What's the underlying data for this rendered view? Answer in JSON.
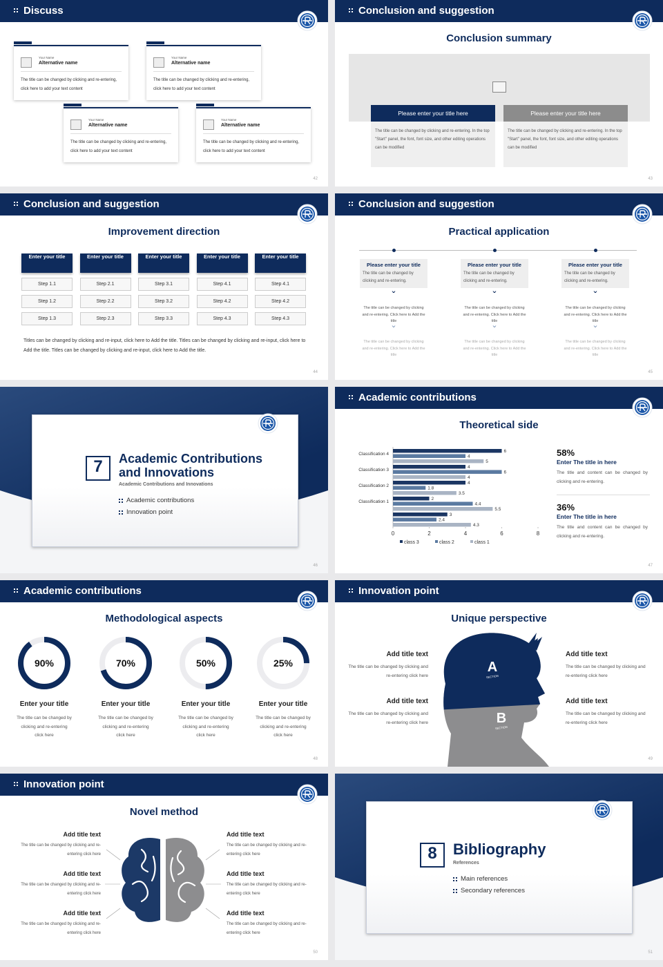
{
  "slides": [
    {
      "header": "Discuss",
      "page": "42",
      "cards": [
        {
          "label": "Your Name",
          "name": "Alternative name",
          "text": "The title can be changed by clicking and re-entering, click here to add your text content"
        },
        {
          "label": "Your Name",
          "name": "Alternative name",
          "text": "The title can be changed by clicking and re-entering, click here to add your text content"
        },
        {
          "label": "Your Name",
          "name": "Alternative name",
          "text": "The title can be changed by clicking and re-entering, click here to add your text content"
        },
        {
          "label": "Your Name",
          "name": "Alternative name",
          "text": "The title can be changed by clicking and re-entering, click here to add your text content"
        }
      ]
    },
    {
      "header": "Conclusion and suggestion",
      "title": "Conclusion summary",
      "page": "43",
      "boxes": [
        {
          "title": "Please enter your title here",
          "text": "The title can be changed by clicking and re-entering. In the top \"Start\" panel, the font, font size, and other editing operations can be modified"
        },
        {
          "title": "Please enter your title here",
          "text": "The title can be changed by clicking and re-entering. In the top \"Start\" panel, the font, font size, and other editing operations can be modified"
        }
      ]
    },
    {
      "header": "Conclusion and suggestion",
      "title": "Improvement direction",
      "page": "44",
      "columns": [
        {
          "title": "Enter your title",
          "steps": [
            "Step 1.1",
            "Step 1.2",
            "Step 1.3"
          ]
        },
        {
          "title": "Enter your title",
          "steps": [
            "Step 2.1",
            "Step 2.2",
            "Step 2.3"
          ]
        },
        {
          "title": "Enter your title",
          "steps": [
            "Step 3.1",
            "Step 3.2",
            "Step 3.3"
          ]
        },
        {
          "title": "Enter your title",
          "steps": [
            "Step 4.1",
            "Step 4.2",
            "Step 4.3"
          ]
        },
        {
          "title": "Enter your title",
          "steps": [
            "Step 4.1",
            "Step 4.2",
            "Step 4.3"
          ]
        }
      ],
      "text": "Titles can be changed by clicking and re-input, click here to Add the title. Titles can be changed by clicking and re-input, click here to Add the title. Titles can be changed by clicking and re-input, click here to Add the title."
    },
    {
      "header": "Conclusion and suggestion",
      "title": "Practical application",
      "page": "45",
      "items": [
        {
          "title": "Please enter your title",
          "text": "The title can be changed by clicking and re-entering.",
          "notes": [
            "The title can be changed by clicking and re-entering. Click here to Add the title",
            "The title can be changed by clicking and re-entering. Click here to Add the title"
          ]
        },
        {
          "title": "Please enter your title",
          "text": "The title can be changed by clicking and re-entering.",
          "notes": [
            "The title can be changed by clicking and re-entering. Click here to Add the title",
            "The title can be changed by clicking and re-entering. Click here to Add the title"
          ]
        },
        {
          "title": "Please enter your title",
          "text": "The title can be changed by clicking and re-entering.",
          "notes": [
            "The title can be changed by clicking and re-entering. Click here to Add the title",
            "The title can be changed by clicking and re-entering. Click here to Add the title"
          ]
        }
      ]
    },
    {
      "number": "7",
      "title": "Academic Contributions and Innovations",
      "subtitle": "Academic Contributions and Innovations",
      "items": [
        "Academic contributions",
        "Innovation point"
      ],
      "page": "46"
    },
    {
      "header": "Academic contributions",
      "title": "Theoretical side",
      "page": "47",
      "chart": {
        "type": "bar",
        "orientation": "horizontal",
        "categories": [
          "Classification 4",
          "Classification 3",
          "Classification 2",
          "Classification 1",
          null
        ],
        "series": [
          {
            "name": "class 3",
            "color": "#1b3663",
            "values": [
              6,
              4,
              4,
              2,
              3
            ]
          },
          {
            "name": "class 2",
            "color": "#5b7aa1",
            "values": [
              4,
              6,
              1.8,
              4.4,
              2.4
            ]
          },
          {
            "name": "class 1",
            "color": "#a9b4c4",
            "values": [
              5,
              4,
              3.5,
              5.5,
              4.3
            ]
          }
        ],
        "xlim": [
          0,
          8
        ],
        "xticks": [
          0,
          2,
          4,
          6,
          8
        ]
      },
      "stats": [
        {
          "value": "58%",
          "title": "Enter The title in here",
          "text": "The title and content can be changed by clicking and re-entering."
        },
        {
          "value": "36%",
          "title": "Enter The title in here",
          "text": "The title and content can be changed by clicking and re-entering."
        }
      ]
    },
    {
      "header": "Academic contributions",
      "title": "Methodological aspects",
      "page": "48",
      "rings": [
        {
          "value": 90,
          "label": "90%",
          "title": "Enter your title",
          "text": "The title can be changed by clicking and re-entering click here"
        },
        {
          "value": 70,
          "label": "70%",
          "title": "Enter your title",
          "text": "The title can be changed by clicking and re-entering click here"
        },
        {
          "value": 50,
          "label": "50%",
          "title": "Enter your title",
          "text": "The title can be changed by clicking and re-entering click here"
        },
        {
          "value": 25,
          "label": "25%",
          "title": "Enter your title",
          "text": "The title can be changed by clicking and re-entering click here"
        }
      ]
    },
    {
      "header": "Innovation point",
      "title": "Unique perspective",
      "page": "49",
      "sections": [
        {
          "letter": "A",
          "label": "SECTION"
        },
        {
          "letter": "B",
          "label": "SECTION"
        }
      ],
      "items": [
        {
          "title": "Add title text",
          "text": "The title can be changed by clicking and re-entering click here"
        },
        {
          "title": "Add title text",
          "text": "The title can be changed by clicking and re-entering click here"
        },
        {
          "title": "Add title text",
          "text": "The title can be changed by clicking and re-entering click here"
        },
        {
          "title": "Add title text",
          "text": "The title can be changed by clicking and re-entering click here"
        }
      ]
    },
    {
      "header": "Innovation point",
      "title": "Novel method",
      "page": "50",
      "items": [
        {
          "title": "Add title text",
          "text": "The title can be changed by clicking and re-entering click here"
        },
        {
          "title": "Add title text",
          "text": "The title can be changed by clicking and re-entering click here"
        },
        {
          "title": "Add title text",
          "text": "The title can be changed by clicking and re-entering click here"
        },
        {
          "title": "Add title text",
          "text": "The title can be changed by clicking and re-entering click here"
        },
        {
          "title": "Add title text",
          "text": "The title can be changed by clicking and re-entering click here"
        },
        {
          "title": "Add title text",
          "text": "The title can be changed by clicking and re-entering click here"
        }
      ]
    },
    {
      "number": "8",
      "title": "Bibliography",
      "subtitle": "References",
      "items": [
        "Main references",
        "Secondary references"
      ],
      "page": "51"
    }
  ]
}
